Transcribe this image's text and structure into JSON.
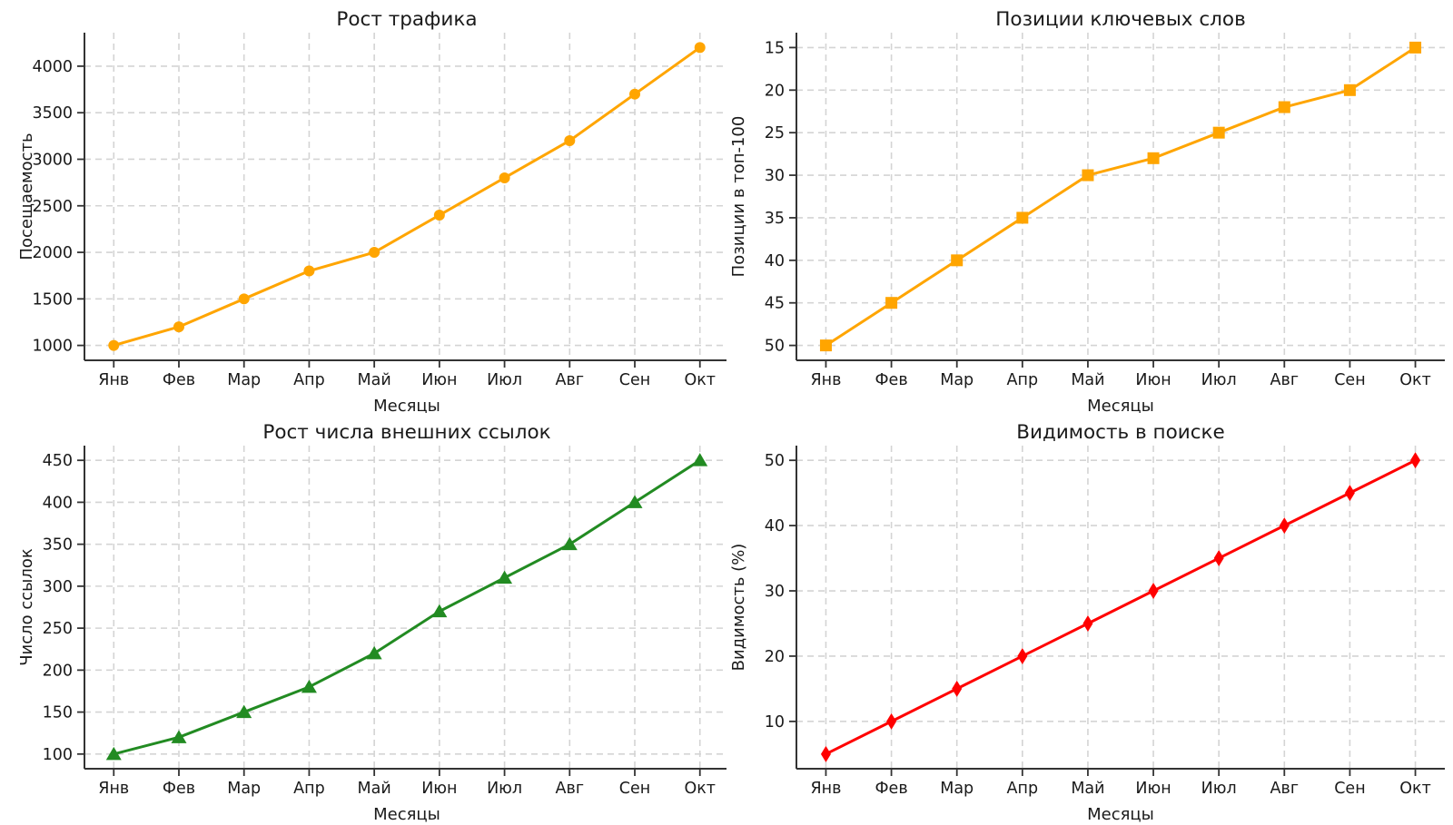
{
  "figure": {
    "background": "#ffffff",
    "grid_rows": 2,
    "grid_cols": 2
  },
  "chart_data": [
    {
      "type": "line",
      "title": "Рост трафика",
      "xlabel": "Месяцы",
      "ylabel": "Посещаемость",
      "categories": [
        "Янв",
        "Фев",
        "Мар",
        "Апр",
        "Май",
        "Июн",
        "Июл",
        "Авг",
        "Сен",
        "Окт"
      ],
      "values": [
        1000,
        1200,
        1500,
        1800,
        2000,
        2400,
        2800,
        3200,
        3700,
        4200
      ],
      "color": "#FFA500",
      "marker": "circle",
      "y_ticks": [
        1000,
        1500,
        2000,
        2500,
        3000,
        3500,
        4000
      ],
      "ylim": [
        840,
        4360
      ],
      "y_inverted": false,
      "grid": true,
      "legend": "none"
    },
    {
      "type": "line",
      "title": "Позиции ключевых слов",
      "xlabel": "Месяцы",
      "ylabel": "Позиции в топ-100",
      "categories": [
        "Янв",
        "Фев",
        "Мар",
        "Апр",
        "Май",
        "Июн",
        "Июл",
        "Авг",
        "Сен",
        "Окт"
      ],
      "values": [
        50,
        45,
        40,
        35,
        30,
        28,
        25,
        22,
        20,
        15
      ],
      "color": "#FFA500",
      "marker": "square",
      "y_ticks": [
        15,
        20,
        25,
        30,
        35,
        40,
        45,
        50
      ],
      "ylim": [
        13.25,
        51.75
      ],
      "y_inverted": true,
      "grid": true,
      "legend": "none"
    },
    {
      "type": "line",
      "title": "Рост числа внешних ссылок",
      "xlabel": "Месяцы",
      "ylabel": "Число ссылок",
      "categories": [
        "Янв",
        "Фев",
        "Мар",
        "Апр",
        "Май",
        "Июн",
        "Июл",
        "Авг",
        "Сен",
        "Окт"
      ],
      "values": [
        100,
        120,
        150,
        180,
        220,
        270,
        310,
        350,
        400,
        450
      ],
      "color": "#228B22",
      "marker": "triangle-up",
      "y_ticks": [
        100,
        150,
        200,
        250,
        300,
        350,
        400,
        450
      ],
      "ylim": [
        82.5,
        467.5
      ],
      "y_inverted": false,
      "grid": true,
      "legend": "none"
    },
    {
      "type": "line",
      "title": "Видимость в поиске",
      "xlabel": "Месяцы",
      "ylabel": "Видимость (%)",
      "categories": [
        "Янв",
        "Фев",
        "Мар",
        "Апр",
        "Май",
        "Июн",
        "Июл",
        "Авг",
        "Сен",
        "Окт"
      ],
      "values": [
        5,
        10,
        15,
        20,
        25,
        30,
        35,
        40,
        45,
        50
      ],
      "color": "#FF0000",
      "marker": "diamond-thin",
      "y_ticks": [
        10,
        20,
        30,
        40,
        50
      ],
      "ylim": [
        2.75,
        52.25
      ],
      "y_inverted": false,
      "grid": true,
      "legend": "none"
    }
  ],
  "style_tokens": {
    "grid_color": "#d4d4d4",
    "spine_color": "#333333",
    "text_color": "#1a1a1a"
  }
}
